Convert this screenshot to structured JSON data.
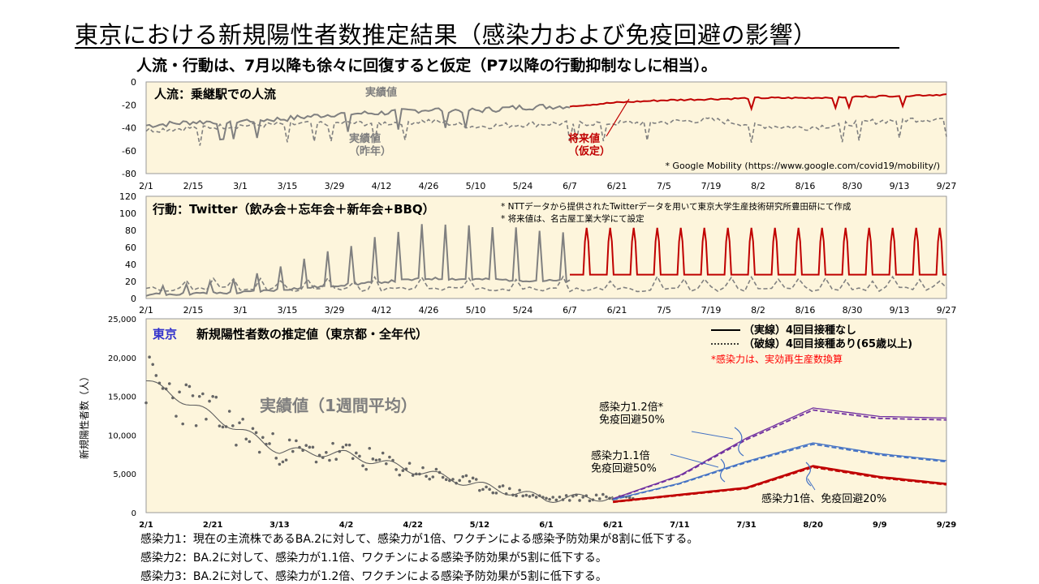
{
  "title": "東京における新規陽性者数推定結果（感染力および免疫回避の影響）",
  "subtitle": "人流・行動は、7月以降も徐々に回復すると仮定（P7以降の行動抑制なしに相当）。",
  "colors": {
    "panel_bg": "#fdf5dc",
    "actual": "#808080",
    "future": "#c00000",
    "ba12": "#7030a0",
    "ba11": "#4472c4",
    "ba10": "#c00000",
    "accent_blue": "#3333cc"
  },
  "chart_data": [
    {
      "type": "line",
      "panel_title": "人流：乗継駅での人流",
      "x_tick_labels": [
        "2/1",
        "2/15",
        "3/1",
        "3/15",
        "3/29",
        "4/12",
        "4/26",
        "5/10",
        "5/24",
        "6/7",
        "6/21",
        "7/5",
        "7/19",
        "8/2",
        "8/16",
        "8/30",
        "9/13",
        "9/27"
      ],
      "y_ticks": [
        "0",
        "-20",
        "-40",
        "-60",
        "-80"
      ],
      "ylim": [
        -80,
        0
      ],
      "series": [
        {
          "name": "実績値",
          "style": "solid-gray",
          "x": [
            "2/1",
            "2/15",
            "3/1",
            "3/15",
            "3/29",
            "4/12",
            "4/26",
            "5/10",
            "5/24",
            "6/7"
          ],
          "values": [
            -38,
            -35,
            -34,
            -32,
            -28,
            -27,
            -24,
            -25,
            -22,
            -21
          ]
        },
        {
          "name": "実績値（昨年）",
          "style": "dashed-gray",
          "x": [
            "2/1",
            "2/15",
            "3/1",
            "3/15",
            "3/29",
            "4/12",
            "4/26",
            "5/10",
            "5/24",
            "6/7",
            "6/21",
            "7/5",
            "7/19",
            "8/2",
            "8/16",
            "8/30",
            "9/13",
            "9/27"
          ],
          "values": [
            -42,
            -40,
            -38,
            -37,
            -36,
            -36,
            -34,
            -39,
            -37,
            -36,
            -36,
            -35,
            -33,
            -38,
            -40,
            -36,
            -33,
            -32
          ]
        },
        {
          "name": "将来値（仮定）",
          "style": "solid-red",
          "x": [
            "6/7",
            "6/21",
            "7/5",
            "7/19",
            "8/2",
            "8/16",
            "8/30",
            "9/13",
            "9/27"
          ],
          "values": [
            -21,
            -18,
            -16,
            -15,
            -14,
            -14,
            -13,
            -12,
            -11
          ]
        }
      ],
      "annotations": [
        "実績値",
        "実績値\n（昨年）",
        "将来値\n（仮定）",
        "* Google  Mobility (https://www.google.com/covid19/mobility/)"
      ]
    },
    {
      "type": "line",
      "panel_title": "行動：Twitter（飲み会＋忘年会＋新年会+BBQ）",
      "x_tick_labels": [
        "2/1",
        "2/15",
        "3/1",
        "3/15",
        "3/29",
        "4/12",
        "4/26",
        "5/10",
        "5/24",
        "6/7",
        "6/21",
        "7/5",
        "7/19",
        "8/2",
        "8/16",
        "8/30",
        "9/13",
        "9/27"
      ],
      "y_ticks": [
        "120",
        "100",
        "80",
        "60",
        "40",
        "20",
        "0"
      ],
      "ylim": [
        0,
        120
      ],
      "notes": [
        "* NTTデータから提供されたTwitterデータを用いて東京大学生産技術研究所豊田研にて作成",
        "* 将来値は、名古屋工業大学にて設定"
      ],
      "series": [
        {
          "name": "実績値",
          "style": "solid-gray",
          "x": [
            "2/1",
            "3/1",
            "3/29",
            "4/26",
            "5/24",
            "6/7"
          ],
          "peaks": [
            12,
            22,
            55,
            88,
            80,
            75
          ]
        },
        {
          "name": "昨年",
          "style": "dashed-gray",
          "values_range": [
            2,
            25
          ]
        },
        {
          "name": "将来値",
          "style": "solid-red",
          "x": [
            "6/7",
            "9/27"
          ],
          "peaks": [
            85,
            85
          ]
        }
      ]
    },
    {
      "type": "line",
      "panel_title_prefix": "東京",
      "panel_title": "新規陽性者数の推定値（東京都・全年代）",
      "ylabel": "新規陽性者数（人）",
      "y_ticks": [
        "25,000",
        "20,000",
        "15,000",
        "10,000",
        "5,000",
        "0"
      ],
      "ylim": [
        0,
        25000
      ],
      "x_tick_labels": [
        "2/1",
        "2/21",
        "3/13",
        "4/2",
        "4/22",
        "5/12",
        "6/1",
        "6/21",
        "7/11",
        "7/31",
        "8/20",
        "9/9",
        "9/29"
      ],
      "legend": [
        "（実線）4回目接種なし",
        "（破線）4回目接種あり(65歳以上)"
      ],
      "legend_note": "*感染力は、実効再生産数換算",
      "actual_label": "実績値（1週間平均）",
      "series": [
        {
          "name": "実績値（1週間平均）",
          "x": [
            "2/1",
            "2/21",
            "3/13",
            "4/2",
            "4/22",
            "5/12",
            "6/1",
            "6/21"
          ],
          "values": [
            17000,
            12500,
            8000,
            7500,
            5500,
            3500,
            1800,
            2000
          ]
        },
        {
          "name": "感染力1.2倍* 免疫回避50%",
          "x": [
            "6/21",
            "7/11",
            "7/31",
            "8/20",
            "9/9",
            "9/29"
          ],
          "values": [
            1800,
            4800,
            9600,
            13500,
            12400,
            12200
          ]
        },
        {
          "name": "感染力1.1倍 免疫回避50%",
          "x": [
            "6/21",
            "7/11",
            "7/31",
            "8/20",
            "9/9",
            "9/29"
          ],
          "values": [
            1700,
            3800,
            6600,
            9000,
            7600,
            6700
          ]
        },
        {
          "name": "感染力1倍、免疫回避20%",
          "x": [
            "6/21",
            "7/11",
            "7/31",
            "8/20",
            "9/9",
            "9/29"
          ],
          "values": [
            1400,
            2300,
            3200,
            6000,
            4600,
            3700
          ]
        }
      ],
      "annotations": [
        "感染力1.2倍*\n免疫回避50%",
        "感染力1.1倍\n免疫回避50%",
        "感染力1倍、免疫回避20%"
      ]
    }
  ],
  "footnotes": [
    "感染力1：現在の主流株であるBA.2に対して、感染力が1倍、ワクチンによる感染予防効果が8割に低下する。",
    "感染力2：BA.2に対して、感染力が1.1倍、ワクチンによる感染予防効果が5割に低下する。",
    "感染力3：BA.2に対して、感染力が1.2倍、ワクチンによる感染予防効果が5割に低下する。"
  ]
}
